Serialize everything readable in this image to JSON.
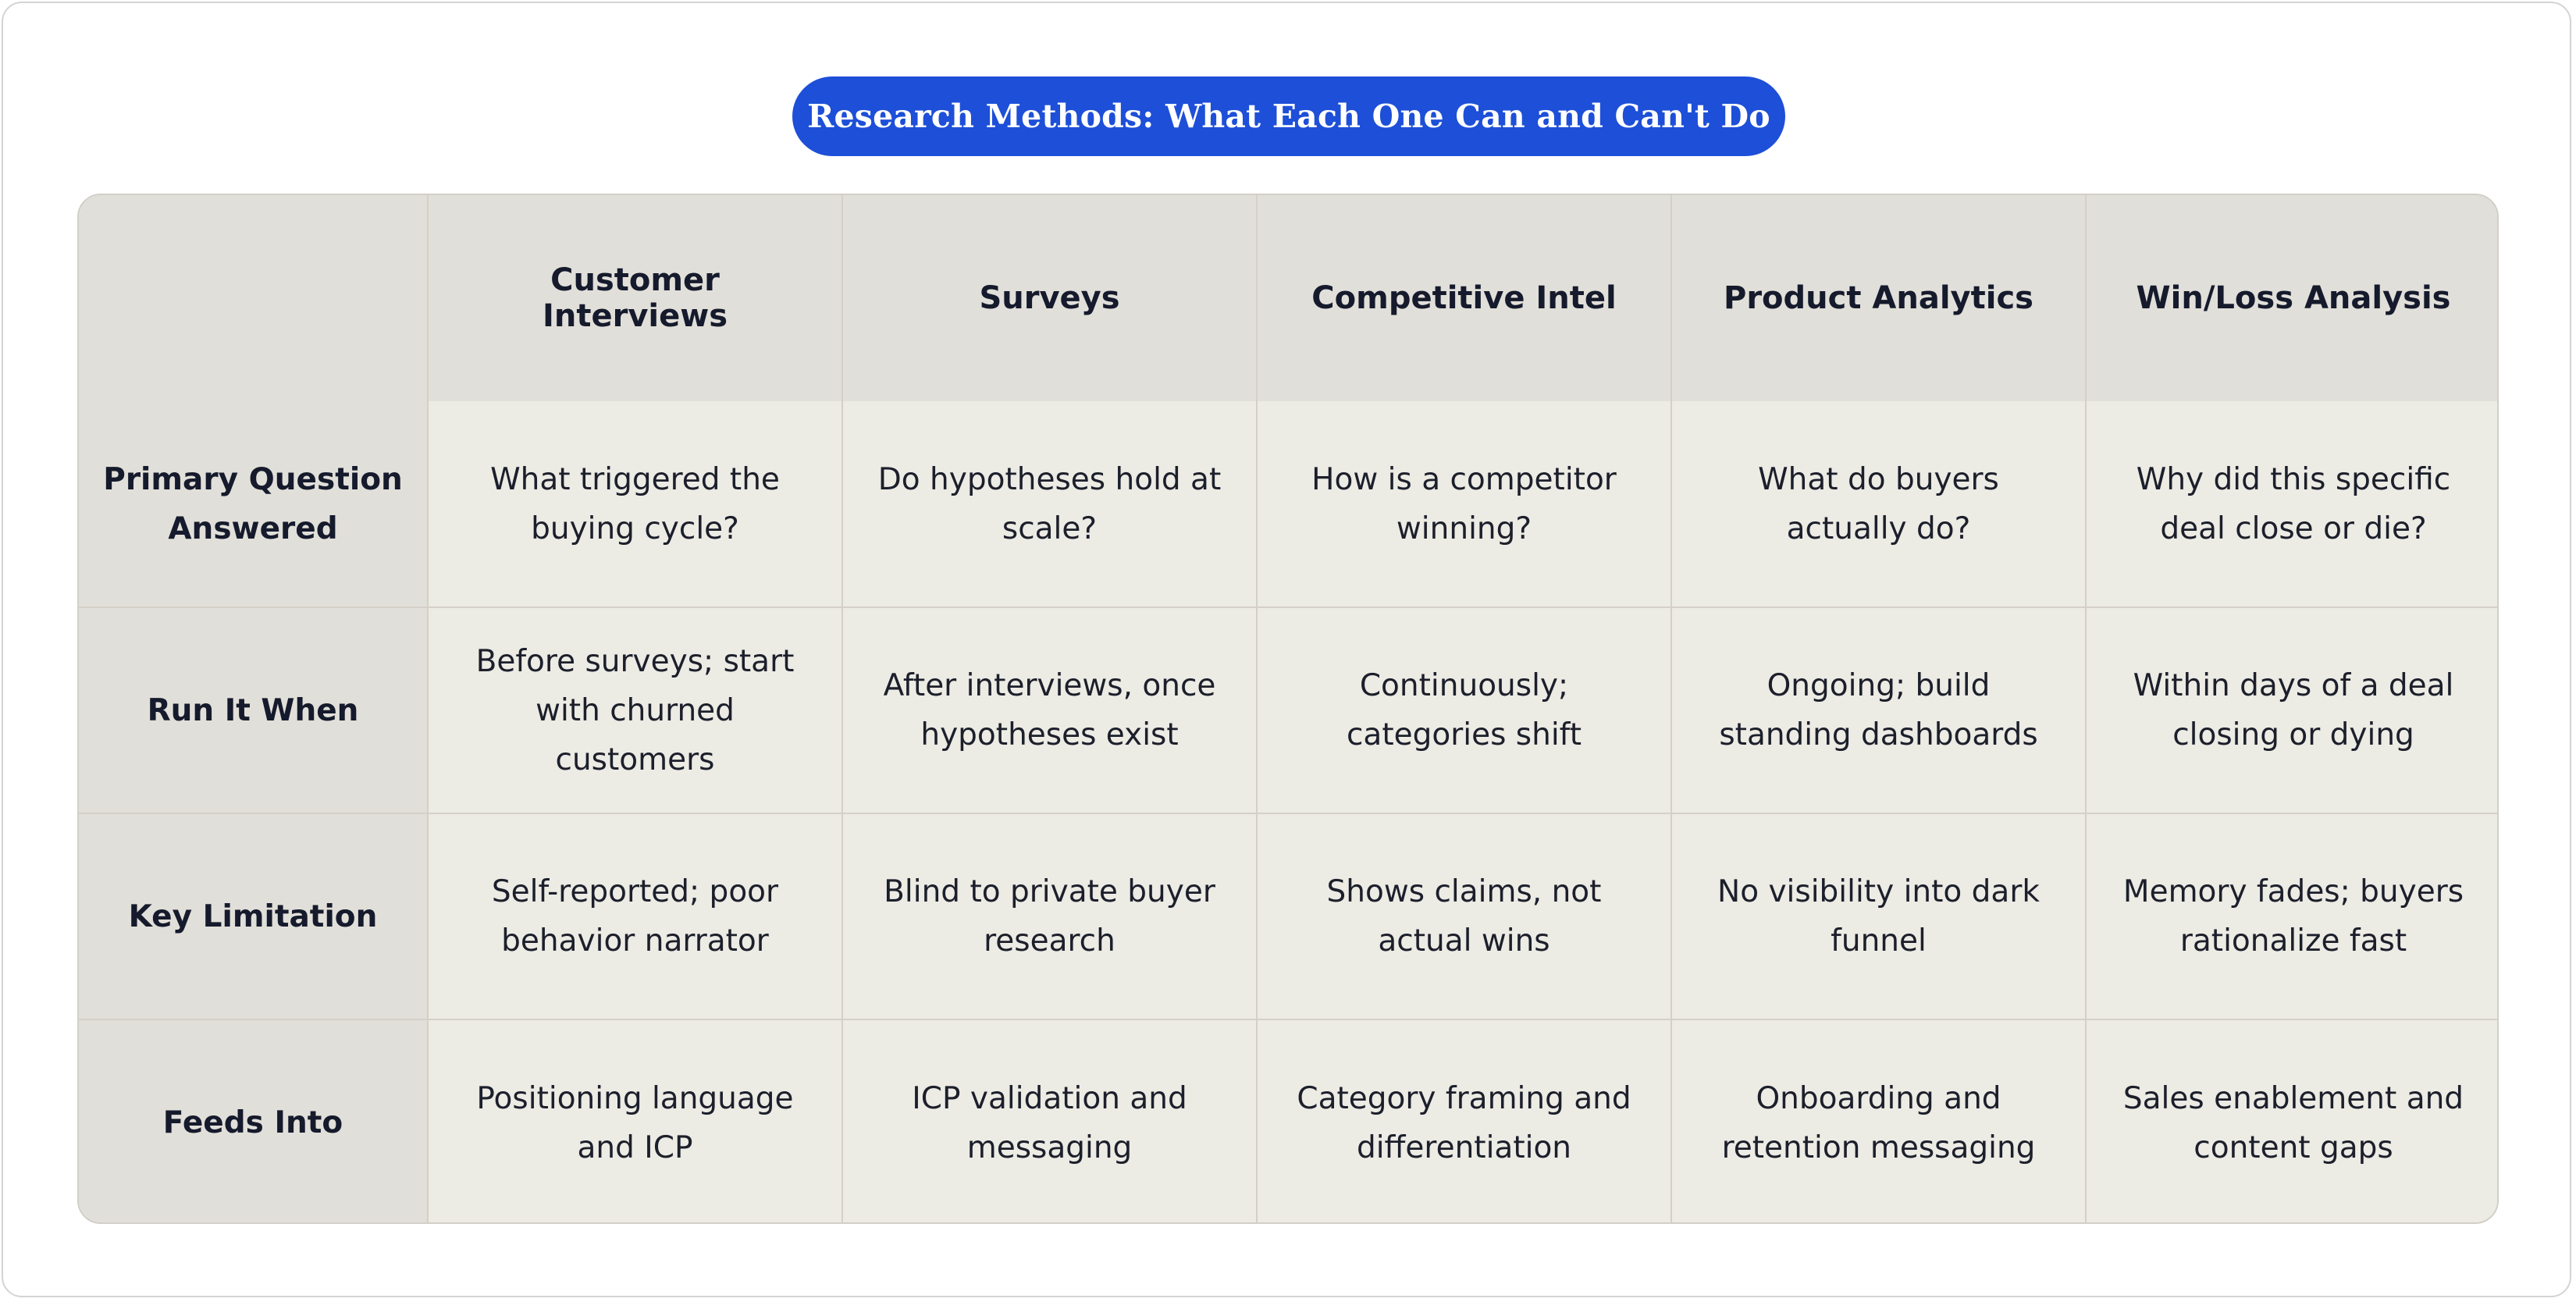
{
  "title": "Research Methods: What Each One Can and Can't Do",
  "table": {
    "corner": "",
    "columns": [
      "Customer Interviews",
      "Surveys",
      "Competitive Intel",
      "Product Analytics",
      "Win/Loss Analysis"
    ],
    "rows": [
      {
        "label": "Primary Question Answered",
        "cells": [
          "What triggered the buying cycle?",
          "Do hypotheses hold at scale?",
          "How is a competitor winning?",
          "What do buyers actually do?",
          "Why did this specific deal close or die?"
        ]
      },
      {
        "label": "Run It When",
        "cells": [
          "Before surveys; start with churned customers",
          "After interviews, once hypotheses exist",
          "Continuously; categories shift",
          "Ongoing; build standing dashboards",
          "Within days of a deal closing or dying"
        ]
      },
      {
        "label": "Key Limitation",
        "cells": [
          "Self-reported; poor behavior narrator",
          "Blind to private buyer research",
          "Shows claims, not actual wins",
          "No visibility into dark funnel",
          "Memory fades; buyers rationalize fast"
        ]
      },
      {
        "label": "Feeds Into",
        "cells": [
          "Positioning language and ICP",
          "ICP validation and messaging",
          "Category framing and differentiation",
          "Onboarding and retention messaging",
          "Sales enablement and content gaps"
        ]
      }
    ]
  },
  "colors": {
    "title_bg": "#1d4fd8",
    "header_bg": "#e1dfd9",
    "cell_bg": "#ecebe4",
    "text": "#151a2c"
  }
}
